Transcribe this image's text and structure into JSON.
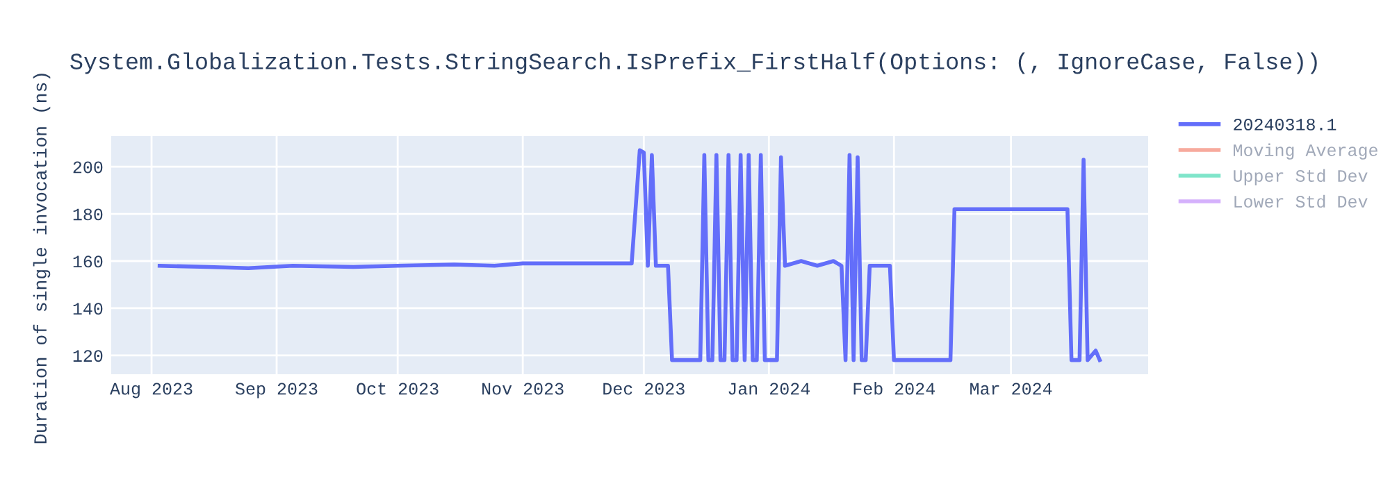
{
  "chart_data": {
    "type": "line",
    "title": "System.Globalization.Tests.StringSearch.IsPrefix_FirstHalf(Options: (, IgnoreCase, False))",
    "ylabel": "Duration of single invocation (ns)",
    "x": [
      "2023-08-03",
      "2023-08-15",
      "2023-08-25",
      "2023-09-05",
      "2023-09-20",
      "2023-10-01",
      "2023-10-15",
      "2023-10-25",
      "2023-11-01",
      "2023-11-15",
      "2023-11-28",
      "2023-11-30",
      "2023-12-01",
      "2023-12-02",
      "2023-12-03",
      "2023-12-04",
      "2023-12-07",
      "2023-12-08",
      "2023-12-15",
      "2023-12-16",
      "2023-12-17",
      "2023-12-18",
      "2023-12-19",
      "2023-12-20",
      "2023-12-21",
      "2023-12-22",
      "2023-12-23",
      "2023-12-24",
      "2023-12-25",
      "2023-12-26",
      "2023-12-27",
      "2023-12-28",
      "2023-12-29",
      "2023-12-30",
      "2023-12-31",
      "2024-01-03",
      "2024-01-04",
      "2024-01-05",
      "2024-01-09",
      "2024-01-13",
      "2024-01-17",
      "2024-01-19",
      "2024-01-20",
      "2024-01-21",
      "2024-01-22",
      "2024-01-23",
      "2024-01-24",
      "2024-01-25",
      "2024-01-26",
      "2024-01-31",
      "2024-02-01",
      "2024-02-15",
      "2024-02-16",
      "2024-03-01",
      "2024-03-15",
      "2024-03-16",
      "2024-03-18",
      "2024-03-19",
      "2024-03-20",
      "2024-03-22",
      "2024-03-23"
    ],
    "series": [
      {
        "name": "20240318.1",
        "color": "#636efa",
        "values": [
          158,
          157.5,
          157,
          158,
          157.5,
          158,
          158.5,
          158,
          159,
          159,
          159,
          207,
          206,
          158,
          205,
          158,
          158,
          118,
          118,
          205,
          118,
          118,
          205,
          118,
          118,
          205,
          118,
          118,
          205,
          118,
          205,
          118,
          118,
          205,
          118,
          118,
          204,
          158,
          160,
          158,
          160,
          158,
          118,
          205,
          118,
          204,
          118,
          118,
          158,
          158,
          118,
          118,
          182,
          182,
          182,
          118,
          118,
          203,
          118,
          122,
          118
        ]
      },
      {
        "name": "Moving Average",
        "color": "#ef553b",
        "values": [
          null,
          null,
          null,
          null,
          null,
          null,
          null,
          null,
          null,
          null,
          null,
          null,
          null,
          null,
          null,
          null,
          null,
          null,
          null,
          null,
          null,
          null,
          null,
          null,
          null,
          null,
          null,
          null,
          null,
          null,
          null,
          null,
          null,
          null,
          null,
          null,
          null,
          null,
          null,
          null,
          null,
          null,
          null,
          null,
          null,
          null,
          null,
          null,
          null,
          null,
          null,
          null,
          null,
          null,
          null,
          null,
          null,
          null,
          null,
          null,
          null
        ]
      },
      {
        "name": "Upper Std Dev",
        "color": "#00cc96",
        "values": [
          null,
          null,
          null,
          null,
          null,
          null,
          null,
          null,
          null,
          null,
          null,
          null,
          null,
          null,
          null,
          null,
          null,
          null,
          null,
          null,
          null,
          null,
          null,
          null,
          null,
          null,
          null,
          null,
          null,
          null,
          null,
          null,
          null,
          null,
          null,
          null,
          null,
          null,
          null,
          null,
          null,
          null,
          null,
          null,
          null,
          null,
          null,
          null,
          null,
          null,
          null,
          null,
          null,
          null,
          null,
          null,
          null,
          null,
          null,
          null,
          null
        ]
      },
      {
        "name": "Lower Std Dev",
        "color": "#ab63fa",
        "values": [
          null,
          null,
          null,
          null,
          null,
          null,
          null,
          null,
          null,
          null,
          null,
          null,
          null,
          null,
          null,
          null,
          null,
          null,
          null,
          null,
          null,
          null,
          null,
          null,
          null,
          null,
          null,
          null,
          null,
          null,
          null,
          null,
          null,
          null,
          null,
          null,
          null,
          null,
          null,
          null,
          null,
          null,
          null,
          null,
          null,
          null,
          null,
          null,
          null,
          null,
          null,
          null,
          null,
          null,
          null,
          null,
          null,
          null,
          null,
          null,
          null
        ]
      }
    ],
    "xlim": [
      "2023-07-22",
      "2024-04-04"
    ],
    "xticks": [
      {
        "value": "2023-08-01",
        "label": "Aug 2023"
      },
      {
        "value": "2023-09-01",
        "label": "Sep 2023"
      },
      {
        "value": "2023-10-01",
        "label": "Oct 2023"
      },
      {
        "value": "2023-11-01",
        "label": "Nov 2023"
      },
      {
        "value": "2023-12-01",
        "label": "Dec 2023"
      },
      {
        "value": "2024-01-01",
        "label": "Jan 2024"
      },
      {
        "value": "2024-02-01",
        "label": "Feb 2024"
      },
      {
        "value": "2024-03-01",
        "label": "Mar 2024"
      }
    ],
    "ylim": [
      112,
      213
    ],
    "yticks": [
      120,
      140,
      160,
      180,
      200
    ],
    "grid": true,
    "legend": "top right",
    "line_style": "solid",
    "marker": "none"
  }
}
